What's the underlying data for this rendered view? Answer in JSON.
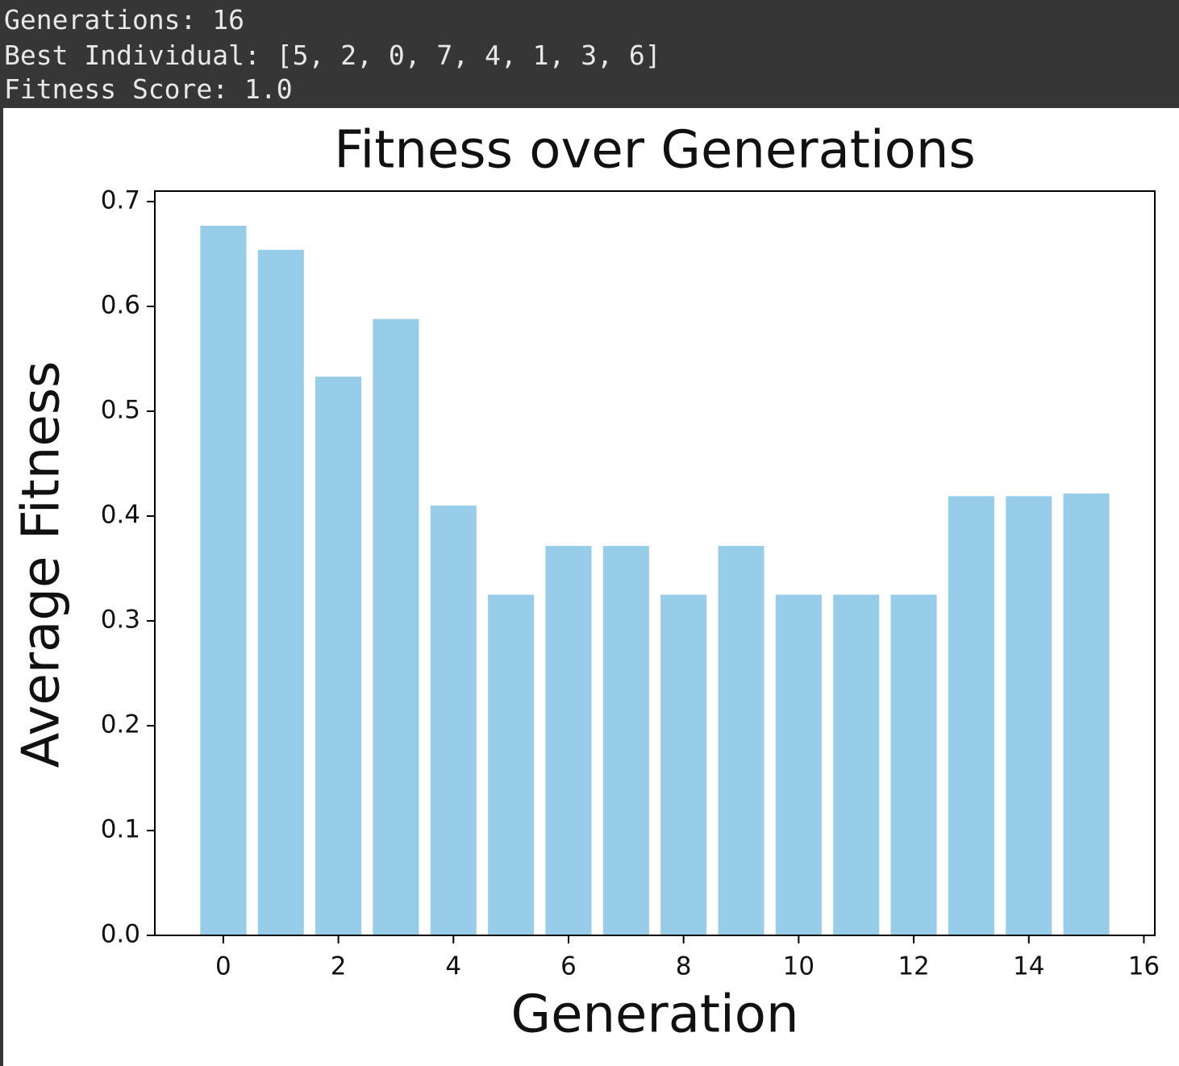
{
  "console": {
    "lines": [
      "Generations: 16",
      "Best Individual: [5, 2, 0, 7, 4, 1, 3, 6]",
      "Fitness Score: 1.0"
    ]
  },
  "chart_data": {
    "type": "bar",
    "title": "Fitness over Generations",
    "x_label": "Generation",
    "y_label": "Average Fitness",
    "x": [
      0,
      1,
      2,
      3,
      4,
      5,
      6,
      7,
      8,
      9,
      10,
      11,
      12,
      13,
      14,
      15
    ],
    "values": [
      0.677,
      0.654,
      0.533,
      0.588,
      0.41,
      0.325,
      0.3715,
      0.3715,
      0.325,
      0.3715,
      0.325,
      0.325,
      0.325,
      0.419,
      0.419,
      0.4215
    ],
    "color": "#97cde8",
    "xlim": [
      -1.19,
      16.19
    ],
    "xticks": [
      0,
      2,
      4,
      6,
      8,
      10,
      12,
      14,
      16
    ],
    "ylim": [
      0,
      0.71
    ],
    "yticks": [
      {
        "value": 0,
        "label": "0.0"
      },
      0.1,
      0.2,
      0.3,
      0.4,
      0.5,
      0.6,
      0.7
    ],
    "grid": false
  }
}
